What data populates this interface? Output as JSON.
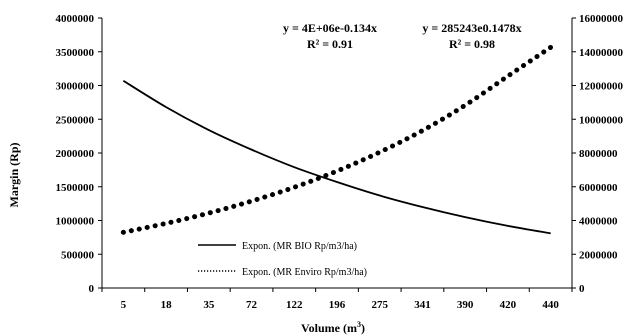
{
  "chart_data": {
    "type": "line",
    "categories": [
      "5",
      "18",
      "35",
      "72",
      "122",
      "196",
      "275",
      "341",
      "390",
      "420",
      "440"
    ],
    "ylabel": "Margin (Rp)",
    "xlabel": "Volume (m",
    "xlabel_sup": "3",
    "xlabel_end": ")",
    "ylim": [
      0,
      4000000
    ],
    "y2lim": [
      0,
      16000000
    ],
    "yticks": [
      "0",
      "500000",
      "1000000",
      "1500000",
      "2000000",
      "2500000",
      "3000000",
      "3500000",
      "4000000"
    ],
    "y2ticks": [
      "0",
      "2000000",
      "4000000",
      "6000000",
      "8000000",
      "10000000",
      "12000000",
      "14000000",
      "16000000"
    ],
    "series": [
      {
        "name": "Expon. (MR BIO Rp/m3/ha)",
        "axis": "left",
        "style": "solid",
        "values": [
          3070000,
          2680000,
          2340000,
          2050000,
          1790000,
          1570000,
          1370000,
          1200000,
          1050000,
          920000,
          810000
        ]
      },
      {
        "name": "Expon. (MR Enviro Rp/m3/ha)",
        "axis": "right",
        "style": "dotted",
        "values": [
          3300000,
          3830000,
          4440000,
          5150000,
          5970000,
          6930000,
          8050000,
          9330000,
          10830000,
          12560000,
          14260000
        ]
      }
    ],
    "annotations": [
      {
        "line1": "y = 4E+06e-0.134x",
        "line2": "R² = 0.91"
      },
      {
        "line1": "y = 285243e0.1478x",
        "line2": "R² = 0.98"
      }
    ],
    "grid": false,
    "legend_position": "bottom-left"
  }
}
